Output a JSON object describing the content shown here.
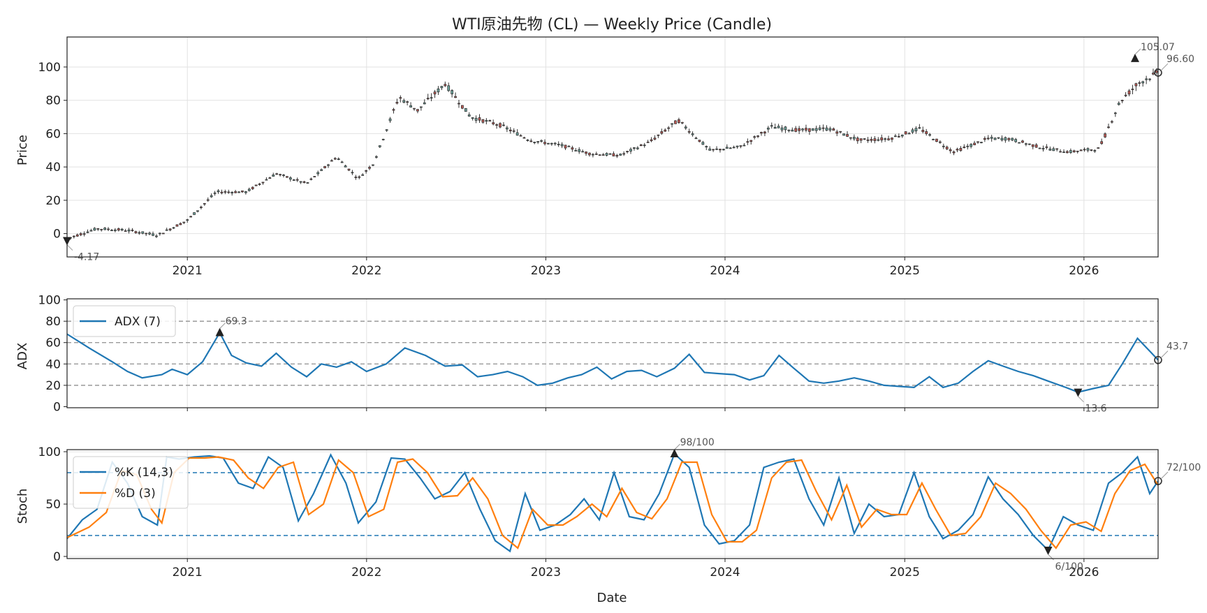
{
  "chart_data": [
    {
      "type": "candlestick",
      "title": "WTI原油先物 (CL) — Weekly Price (Candle)",
      "ylabel": "Price",
      "xlabel": "",
      "x_ticks": [
        "2021",
        "2022",
        "2023",
        "2024",
        "2025",
        "2026"
      ],
      "y_ticks": [
        0,
        20,
        40,
        60,
        80,
        100
      ],
      "ylim": [
        -14,
        118
      ],
      "x_range": [
        "2020-05-01",
        "2026-06-01"
      ],
      "grid": true,
      "close_series": {
        "dates": [
          "2020-05-01",
          "2020-07-01",
          "2020-09-01",
          "2020-11-01",
          "2021-01-01",
          "2021-03-01",
          "2021-05-01",
          "2021-07-01",
          "2021-09-01",
          "2021-11-01",
          "2021-12-15",
          "2022-01-15",
          "2022-03-08",
          "2022-04-15",
          "2022-06-10",
          "2022-08-01",
          "2022-10-01",
          "2022-12-01",
          "2023-02-01",
          "2023-04-01",
          "2023-06-01",
          "2023-08-01",
          "2023-09-28",
          "2023-12-01",
          "2024-02-01",
          "2024-04-05",
          "2024-06-01",
          "2024-08-01",
          "2024-10-01",
          "2024-12-01",
          "2025-02-01",
          "2025-04-10",
          "2025-06-20",
          "2025-08-01",
          "2025-10-01",
          "2025-12-01",
          "2026-02-01",
          "2026-03-15",
          "2026-04-20",
          "2026-06-01"
        ],
        "values": [
          -3,
          3,
          2,
          -1,
          8,
          25,
          25,
          36,
          30,
          46,
          33,
          42,
          82,
          74,
          90,
          70,
          65,
          56,
          53,
          48,
          47,
          55,
          68,
          50,
          52,
          64,
          62,
          63,
          56,
          57,
          63,
          49,
          57,
          57,
          52,
          49,
          51,
          79,
          90,
          96.6
        ]
      },
      "annotations": [
        {
          "label": "105.07",
          "date": "2026-04-15",
          "value": 105.07,
          "marker": "max"
        },
        {
          "label": "-4.17",
          "date": "2020-05-01",
          "value": -4.17,
          "marker": "min"
        },
        {
          "label": "96.60",
          "date": "2026-06-01",
          "value": 96.6,
          "marker": "last"
        }
      ]
    },
    {
      "type": "line",
      "ylabel": "ADX",
      "xlabel": "",
      "y_ticks": [
        0,
        20,
        40,
        60,
        80,
        100
      ],
      "ylim": [
        -1,
        101
      ],
      "reference_lines": [
        20,
        40,
        60,
        80
      ],
      "legend": "top-left",
      "series": [
        {
          "name": "ADX (7)",
          "color": "#1f77b4",
          "dates": [
            "2020-05-01",
            "2020-06-15",
            "2020-08-01",
            "2020-09-01",
            "2020-10-01",
            "2020-11-10",
            "2020-12-01",
            "2021-01-01",
            "2021-02-01",
            "2021-03-08",
            "2021-04-01",
            "2021-05-01",
            "2021-06-01",
            "2021-07-01",
            "2021-08-01",
            "2021-09-01",
            "2021-10-01",
            "2021-11-01",
            "2021-12-01",
            "2022-01-01",
            "2022-02-10",
            "2022-03-20",
            "2022-05-01",
            "2022-06-10",
            "2022-07-15",
            "2022-08-15",
            "2022-09-15",
            "2022-10-15",
            "2022-11-15",
            "2022-12-15",
            "2023-01-15",
            "2023-02-15",
            "2023-03-15",
            "2023-04-15",
            "2023-05-15",
            "2023-06-15",
            "2023-07-15",
            "2023-08-15",
            "2023-09-20",
            "2023-10-20",
            "2023-11-20",
            "2023-12-20",
            "2024-01-20",
            "2024-02-20",
            "2024-03-20",
            "2024-04-20",
            "2024-05-20",
            "2024-06-20",
            "2024-07-20",
            "2024-08-20",
            "2024-09-20",
            "2024-10-20",
            "2024-11-20",
            "2024-12-20",
            "2025-01-20",
            "2025-02-20",
            "2025-03-20",
            "2025-04-20",
            "2025-05-20",
            "2025-06-20",
            "2025-07-20",
            "2025-08-20",
            "2025-09-20",
            "2025-10-20",
            "2025-11-25",
            "2025-12-20",
            "2026-01-20",
            "2026-02-20",
            "2026-03-20",
            "2026-04-20",
            "2026-05-15",
            "2026-06-01"
          ],
          "values": [
            68,
            55,
            42,
            33,
            27,
            30,
            35,
            30,
            42,
            69.3,
            48,
            41,
            38,
            50,
            37,
            28,
            40,
            37,
            42,
            33,
            40,
            55,
            48,
            38,
            39,
            28,
            30,
            33,
            28,
            20,
            22,
            27,
            30,
            37,
            26,
            33,
            34,
            28,
            36,
            49,
            32,
            31,
            30,
            25,
            29,
            48,
            36,
            24,
            22,
            24,
            27,
            24,
            20,
            19,
            18,
            28,
            18,
            22,
            33,
            43,
            38,
            33,
            29,
            24,
            18,
            13.6,
            17,
            20,
            40,
            64,
            52,
            43.7
          ]
        }
      ],
      "annotations": [
        {
          "label": "69.3",
          "date": "2021-03-08",
          "value": 69.3,
          "marker": "max"
        },
        {
          "label": "13.6",
          "date": "2025-12-20",
          "value": 13.6,
          "marker": "min"
        },
        {
          "label": "43.7",
          "date": "2026-06-01",
          "value": 43.7,
          "marker": "last"
        }
      ]
    },
    {
      "type": "line",
      "ylabel": "Stoch",
      "xlabel": "Date",
      "x_ticks": [
        "2021",
        "2022",
        "2023",
        "2024",
        "2025",
        "2026"
      ],
      "y_ticks": [
        0,
        50,
        100
      ],
      "ylim": [
        -2,
        102
      ],
      "reference_lines": [
        20,
        80
      ],
      "legend": "top-left",
      "series": [
        {
          "name": "%K (14,3)",
          "color": "#1f77b4",
          "dates": [
            "2020-05-01",
            "2020-06-01",
            "2020-07-01",
            "2020-08-01",
            "2020-09-01",
            "2020-10-01",
            "2020-11-01",
            "2020-11-20",
            "2020-12-15",
            "2021-01-15",
            "2021-02-15",
            "2021-03-15",
            "2021-04-15",
            "2021-05-15",
            "2021-06-15",
            "2021-07-15",
            "2021-08-15",
            "2021-09-15",
            "2021-10-20",
            "2021-11-20",
            "2021-12-15",
            "2022-01-20",
            "2022-02-20",
            "2022-03-20",
            "2022-04-20",
            "2022-05-20",
            "2022-06-20",
            "2022-07-20",
            "2022-08-20",
            "2022-09-20",
            "2022-10-20",
            "2022-11-20",
            "2022-12-20",
            "2023-01-20",
            "2023-02-20",
            "2023-03-20",
            "2023-04-20",
            "2023-05-20",
            "2023-06-20",
            "2023-07-20",
            "2023-08-20",
            "2023-09-20",
            "2023-10-20",
            "2023-11-20",
            "2023-12-20",
            "2024-01-20",
            "2024-02-20",
            "2024-03-20",
            "2024-04-20",
            "2024-05-20",
            "2024-06-20",
            "2024-07-20",
            "2024-08-20",
            "2024-09-20",
            "2024-10-20",
            "2024-11-20",
            "2024-12-20",
            "2025-01-20",
            "2025-02-20",
            "2025-03-20",
            "2025-04-20",
            "2025-05-20",
            "2025-06-20",
            "2025-07-20",
            "2025-08-20",
            "2025-09-20",
            "2025-10-20",
            "2025-11-20",
            "2025-12-20",
            "2026-01-20",
            "2026-02-20",
            "2026-03-20",
            "2026-04-20",
            "2026-05-15",
            "2026-06-01"
          ],
          "values": [
            17,
            35,
            45,
            90,
            70,
            38,
            30,
            95,
            93,
            95,
            96,
            94,
            70,
            65,
            95,
            85,
            34,
            60,
            97,
            70,
            32,
            52,
            94,
            93,
            75,
            55,
            62,
            80,
            45,
            15,
            5,
            60,
            25,
            30,
            40,
            55,
            35,
            80,
            38,
            35,
            60,
            98,
            85,
            30,
            12,
            15,
            30,
            85,
            90,
            93,
            55,
            30,
            75,
            22,
            50,
            38,
            40,
            80,
            38,
            17,
            25,
            40,
            76,
            55,
            40,
            20,
            6,
            38,
            30,
            25,
            70,
            80,
            95,
            60,
            72
          ]
        },
        {
          "name": "%D (3)",
          "color": "#ff7f0e",
          "dates": [
            "2020-05-01",
            "2020-06-15",
            "2020-07-20",
            "2020-08-20",
            "2020-09-20",
            "2020-10-20",
            "2020-11-10",
            "2020-12-05",
            "2021-01-05",
            "2021-02-05",
            "2021-03-05",
            "2021-04-05",
            "2021-05-05",
            "2021-06-05",
            "2021-07-05",
            "2021-08-05",
            "2021-09-05",
            "2021-10-05",
            "2021-11-05",
            "2021-12-05",
            "2022-01-05",
            "2022-02-05",
            "2022-03-05",
            "2022-04-05",
            "2022-05-05",
            "2022-06-05",
            "2022-07-05",
            "2022-08-05",
            "2022-09-05",
            "2022-10-05",
            "2022-11-05",
            "2022-12-05",
            "2023-01-05",
            "2023-02-05",
            "2023-03-05",
            "2023-04-05",
            "2023-05-05",
            "2023-06-05",
            "2023-07-05",
            "2023-08-05",
            "2023-09-05",
            "2023-10-05",
            "2023-11-05",
            "2023-12-05",
            "2024-01-05",
            "2024-02-05",
            "2024-03-05",
            "2024-04-05",
            "2024-05-05",
            "2024-06-05",
            "2024-07-05",
            "2024-08-05",
            "2024-09-05",
            "2024-10-05",
            "2024-11-05",
            "2024-12-05",
            "2025-01-05",
            "2025-02-05",
            "2025-03-05",
            "2025-04-05",
            "2025-05-05",
            "2025-06-05",
            "2025-07-05",
            "2025-08-05",
            "2025-09-05",
            "2025-10-05",
            "2025-11-05",
            "2025-12-05",
            "2026-01-05",
            "2026-02-05",
            "2026-03-05",
            "2026-04-05",
            "2026-05-05",
            "2026-06-01"
          ],
          "values": [
            18,
            28,
            42,
            82,
            78,
            45,
            32,
            80,
            94,
            94,
            95,
            92,
            75,
            65,
            85,
            90,
            40,
            50,
            92,
            80,
            38,
            45,
            90,
            93,
            80,
            57,
            58,
            75,
            55,
            20,
            8,
            45,
            30,
            30,
            38,
            50,
            38,
            65,
            42,
            36,
            55,
            90,
            90,
            40,
            14,
            14,
            25,
            75,
            90,
            92,
            62,
            35,
            68,
            28,
            45,
            40,
            40,
            70,
            45,
            20,
            22,
            38,
            70,
            60,
            45,
            25,
            8,
            30,
            33,
            24,
            60,
            82,
            88,
            68
          ]
        }
      ],
      "annotations": [
        {
          "label": "98/100",
          "date": "2023-09-20",
          "value": 98,
          "marker": "max"
        },
        {
          "label": "6/100",
          "date": "2025-10-20",
          "value": 6,
          "marker": "min"
        },
        {
          "label": "72/100",
          "date": "2026-06-01",
          "value": 72,
          "marker": "last"
        }
      ]
    }
  ]
}
